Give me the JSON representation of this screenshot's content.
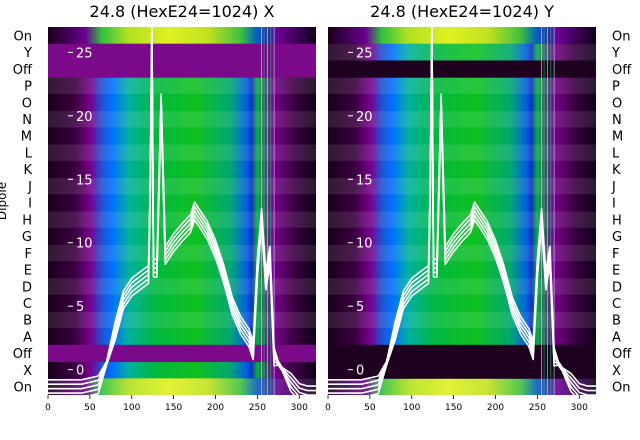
{
  "chart_data": [
    {
      "type": "heatmap",
      "title": "24.8 (HexE24=1024) X",
      "left_axis_label": "Dipole",
      "row_labels": [
        "On",
        "Y",
        "Off",
        "P",
        "O",
        "N",
        "M",
        "L",
        "K",
        "J",
        "I",
        "H",
        "G",
        "F",
        "E",
        "D",
        "C",
        "B",
        "A",
        "Off",
        "X",
        "On"
      ],
      "x_ticks": [
        0,
        50,
        100,
        150,
        200,
        250,
        300
      ],
      "xlim": [
        0,
        320
      ],
      "y_ticks_overlay": [
        25,
        20,
        15,
        10,
        5,
        0
      ],
      "ylim_overlay": [
        -2,
        27
      ],
      "band_rows": [
        "Y",
        "Off"
      ],
      "overlay_series": [
        {
          "x": [
            0,
            20,
            40,
            60,
            70,
            80,
            90,
            100,
            110,
            120,
            122,
            124,
            126,
            130,
            135,
            140,
            150,
            160,
            170,
            175,
            180,
            190,
            200,
            210,
            220,
            230,
            240,
            245,
            250,
            255,
            260,
            265,
            270,
            275,
            280,
            290,
            300,
            310,
            320
          ],
          "y": [
            -1.5,
            -1.5,
            -1.5,
            -1.2,
            0.5,
            3,
            5.5,
            6.5,
            7,
            7.5,
            14,
            27,
            8,
            8,
            21,
            9,
            10,
            10.8,
            11.5,
            12.5,
            12,
            11,
            9.5,
            7.5,
            5,
            3.5,
            2.5,
            1.5,
            8,
            12,
            7,
            9,
            1,
            0.5,
            0,
            -1,
            -1.8,
            -2,
            -2
          ]
        }
      ]
    },
    {
      "type": "heatmap",
      "title": "24.8 (HexE24=1024) Y",
      "right_axis_labels": [
        "On",
        "Y",
        "Off",
        "P",
        "O",
        "N",
        "M",
        "L",
        "K",
        "J",
        "I",
        "H",
        "G",
        "F",
        "E",
        "D",
        "C",
        "B",
        "A",
        "Off",
        "X",
        "On"
      ],
      "x_ticks": [
        0,
        50,
        100,
        150,
        200,
        250,
        300
      ],
      "xlim": [
        0,
        320
      ],
      "y_ticks_overlay": [
        25,
        20,
        15,
        10,
        5,
        0
      ],
      "ylim_overlay": [
        -2,
        27
      ],
      "band_rows": [
        "X",
        "Off"
      ],
      "overlay_series": [
        {
          "x": [
            0,
            20,
            40,
            60,
            70,
            80,
            90,
            100,
            110,
            120,
            122,
            124,
            126,
            130,
            135,
            140,
            150,
            160,
            170,
            175,
            180,
            190,
            200,
            210,
            220,
            230,
            240,
            245,
            250,
            255,
            260,
            265,
            270,
            275,
            280,
            290,
            300,
            310,
            320
          ],
          "y": [
            -1.5,
            -1.5,
            -1.5,
            -1.2,
            0.5,
            3,
            5.5,
            6.5,
            7,
            7.5,
            14,
            27,
            8,
            8,
            21,
            9,
            10,
            10.8,
            11.5,
            12.5,
            12,
            11,
            9.5,
            7.5,
            5,
            3.5,
            2.5,
            1.5,
            8,
            12,
            7,
            9,
            1,
            0.5,
            0,
            -1,
            -1.8,
            -2,
            -2
          ]
        }
      ]
    }
  ]
}
